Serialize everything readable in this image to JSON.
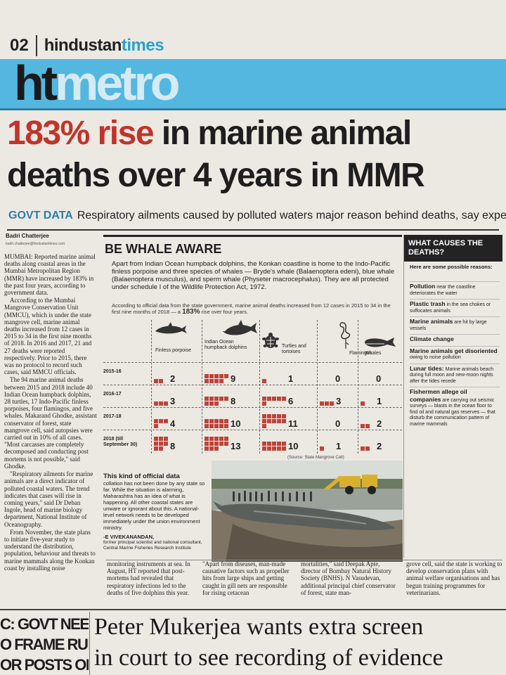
{
  "masthead": {
    "page_number": "02",
    "paper_name_part1": "hindustan",
    "paper_name_part2": "times",
    "section_logo_part1": "ht",
    "section_logo_part2": "metro"
  },
  "headline": {
    "highlight": "183% rise",
    "line1_rest": "in marine animal",
    "line2": "deaths over 4 years in MMR"
  },
  "deck": {
    "tag": "GOVT DATA",
    "text": "Respiratory ailments caused by polluted waters major reason behind deaths, say experts"
  },
  "byline": {
    "name": "Badri Chatterjee",
    "email": "badri.chatterjee@hindustantimes.com"
  },
  "left_column": [
    "MUMBAI: Reported marine animal deaths along coastal areas in the Mumbai Metropolitan Region (MMR) have increased by 183% in the past four years, according to government data.",
    "According to the Mumbai Mangrove Conservation Unit (MMCU), which is under the state mangrove cell, marine animal deaths increased from 12 cases in 2015 to 34 in the first nine months of 2018. In 2016 and 2017, 21 and 27 deaths were reported respectively. Prior to 2015, there was no protocol to record such cases, said MMCU officials.",
    "The 94 marine animal deaths between 2015 and 2018 include 40 Indian Ocean humpback dolphins, 28 turtles, 17 Indo-Pacific finless porpoises, four flamingos, and five whales. Makarand Ghodke, assistant conservator of forest, state mangrove cell, said autopsies were carried out in 10% of all cases. \"Most carcasses are completely decomposed and conducting post mortems is not possible,\" said Ghodke.",
    "\"Respiratory ailments for marine animals are a direct indicator of polluted coastal waters. The trend indicates that cases will rise in coming years,\" said Dr Deban Ingole, head of marine biology department, National Institute of Oceanography.",
    "From November, the state plans to initiate five-year study to understand the distribution, population, behaviour and threats to marine mammals along the Konkan coast by installing noise"
  ],
  "box": {
    "title": "BE WHALE AWARE",
    "intro": "Apart from Indian Ocean humpback dolphins, the Konkan coastline is home to the Indo-Pacific finless porpoise and three species of whales — Bryde's whale (Balaenoptera edeni), blue whale (Balaenoptera musculus), and sperm whale (Physeter macrocephalus). They are all protected under schedule I of the Wildlife Protection Act, 1972.",
    "sub_before": "According to official data from the state government, marine animal deaths increased from 12 cases in 2015 to 34 in the first nine months of 2018 — a",
    "sub_highlight": "183%",
    "sub_after": "rise over four years.",
    "source": "(Source: State Mangrove Cell)",
    "columns": [
      {
        "label": "Finless porpoise",
        "icon": "porpoise-icon"
      },
      {
        "label": "Indian Ocean humpback dolphins",
        "icon": "dolphin-icon"
      },
      {
        "label": "Turtles and tortoises",
        "icon": "turtle-icon"
      },
      {
        "label": "Flamingos",
        "icon": "flamingo-icon"
      },
      {
        "label": "Whales",
        "icon": "whale-icon"
      }
    ],
    "rows": [
      {
        "year": "2015-16",
        "values": [
          2,
          9,
          1,
          0,
          0
        ]
      },
      {
        "year": "2016-17",
        "values": [
          3,
          8,
          6,
          3,
          1
        ]
      },
      {
        "year": "2017-18",
        "values": [
          4,
          10,
          11,
          0,
          2
        ]
      },
      {
        "year": "2018 (till September 30)",
        "values": [
          8,
          13,
          10,
          1,
          2
        ]
      }
    ],
    "official": {
      "heading": "This kind of official data",
      "text": "collation has not been done by any state so far. While the situation is alarming, Maharashtra has an idea of what is happening. All other coastal states are unware or ignorant about this. A national-level network needs to be developed immediately under the union environment ministry.",
      "signature": "-E VIVEKANANDAN,",
      "designation": "former principal scientist and national consultant, Central Marine Fisheries Research Institute"
    }
  },
  "sidebar": {
    "heading": "WHAT CAUSES THE DEATHS?",
    "intro": "Here are some possible reasons:",
    "items": [
      {
        "bold": "Pollution",
        "text": "near the coastline deteriorates the water"
      },
      {
        "bold": "Plastic trash",
        "text": "in the sea chokes or suffocates animals"
      },
      {
        "bold": "Marine animals",
        "text": "are hit by large vessels"
      },
      {
        "bold": "Climate change",
        "text": ""
      },
      {
        "bold": "Marine animals get disoriented",
        "text": "owing to noise pollution"
      },
      {
        "bold": "Lunar tides:",
        "text": "Marine animals beach during full moon and new-moon nights after the tides recede"
      },
      {
        "bold": "Fishermen allege oil companies",
        "text": "are carrying out seismic surveys — blasts in the ocean floor to find oil and natural gas reserves — that disturb the communication pattern of marine mammals"
      }
    ]
  },
  "bottom_columns": [
    "monitoring instruments at sea. In August, HT reported that post-mortems had revealed that respiratory infections led to the deaths of five dolphins this year.",
    "\"Apart from diseases, man-made causative factors such as propeller hits from large ships and getting caught in gill nets are responsible for rising cetacean",
    "mortalities,\" said Deepak Apte, director of Bombay Natural History Society (BNHS). N Vasudevan, additional principal chief conservator of forest, state man-",
    "grove cell, said the state is working to develop conservation plans with animal welfare organisations and has begun training programmes for veterinarians."
  ],
  "next_story": {
    "left_kicker_lines": [
      "C: GOVT NEEDS",
      "O FRAME RULES",
      "OR POSTS ON"
    ],
    "headline_line1": "Peter Mukerjea wants extra screen",
    "headline_line2": "in court to see recording of evidence"
  },
  "colors": {
    "accent_blue": "#54b7e0",
    "headline_red": "#c2332a",
    "square_red": "#c0433a",
    "deck_blue": "#2a7db4"
  }
}
